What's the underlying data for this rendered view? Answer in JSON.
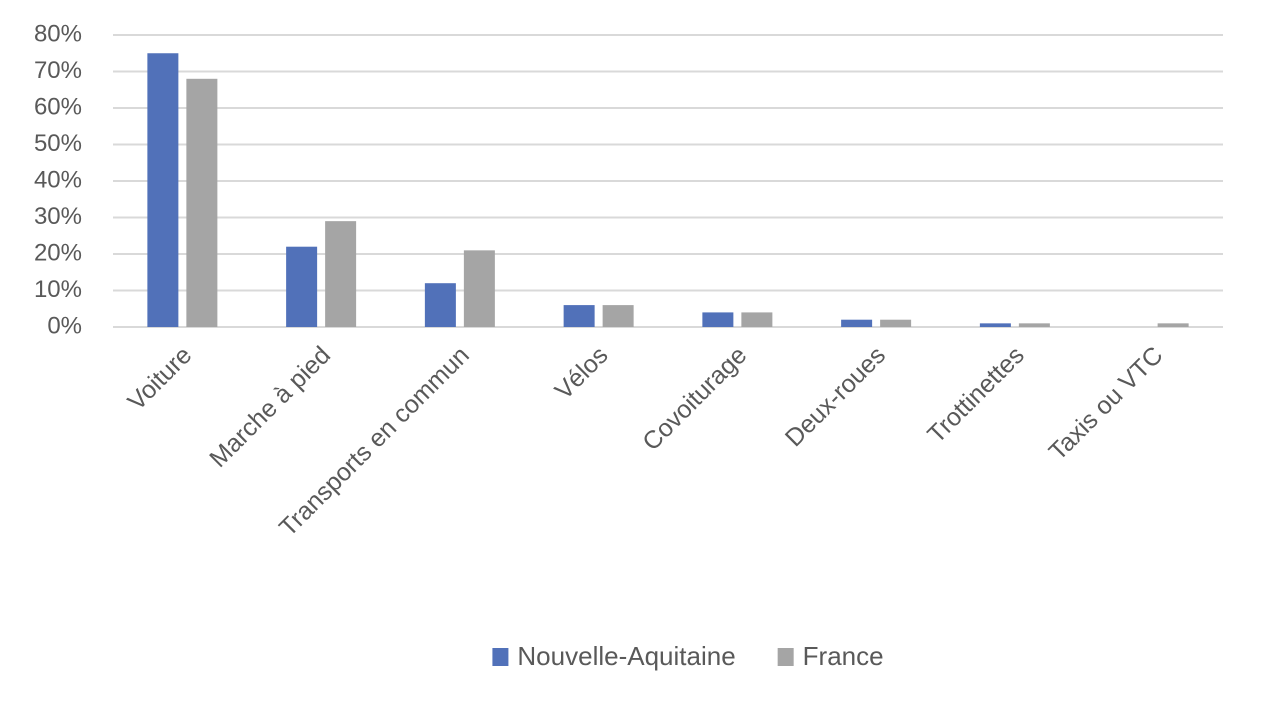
{
  "chart_data": {
    "type": "bar",
    "categories": [
      "Voiture",
      "Marche à pied",
      "Transports en commun",
      "Vélos",
      "Covoiturage",
      "Deux-roues",
      "Trottinettes",
      "Taxis ou VTC"
    ],
    "series": [
      {
        "name": "Nouvelle-Aquitaine",
        "color": "#5171b9",
        "values": [
          75,
          22,
          12,
          6,
          4,
          2,
          1,
          0
        ]
      },
      {
        "name": "France",
        "color": "#a5a5a5",
        "values": [
          68,
          29,
          21,
          6,
          4,
          2,
          1,
          1
        ]
      }
    ],
    "ylim": [
      0,
      80
    ],
    "yticks": [
      {
        "value": 0,
        "label": "0%"
      },
      {
        "value": 10,
        "label": "10%"
      },
      {
        "value": 20,
        "label": "20%"
      },
      {
        "value": 30,
        "label": "30%"
      },
      {
        "value": 40,
        "label": "40%"
      },
      {
        "value": 50,
        "label": "50%"
      },
      {
        "value": 60,
        "label": "60%"
      },
      {
        "value": 70,
        "label": "70%"
      },
      {
        "value": 80,
        "label": "80%"
      }
    ],
    "grid": true,
    "legend": "bottom"
  }
}
